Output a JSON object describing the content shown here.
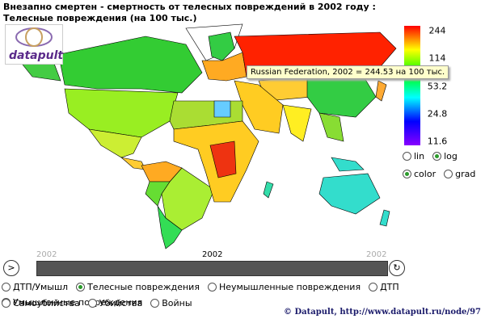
{
  "header": {
    "title": "Внезапно смертен - смертность от телесных повреждений в 2002 году : Телесные повреждения (на 100 тыс.)",
    "logo": "datapult"
  },
  "legend": {
    "ticks": [
      244,
      114,
      53.2,
      24.8,
      11.6
    ],
    "range": [
      11.6,
      244
    ],
    "scale": "log",
    "colors": [
      "#ff0000",
      "#ffff00",
      "#00ff00",
      "#00ffff",
      "#0000ff",
      "#8800ff"
    ]
  },
  "scale_options": {
    "options": [
      "lin",
      "log"
    ],
    "selected_index": 1
  },
  "color_options": {
    "options": [
      "color",
      "grad"
    ],
    "selected_index": 0
  },
  "tooltip": "Russian Federation, 2002 = 244.53 на 100 тыс.",
  "timeline": {
    "start": "2002",
    "current": "2002",
    "end": "2002"
  },
  "categories": {
    "options": [
      "ДТП/Умышл",
      "Телесные повреждения",
      "Неумышленные повреждения",
      "ДТП",
      "Умышленные повреждения",
      "Самоубийства",
      "Убийства",
      "Войны"
    ],
    "selected_index": 1
  },
  "footer": "© Datapult, http://www.datapult.ru/node/97"
}
